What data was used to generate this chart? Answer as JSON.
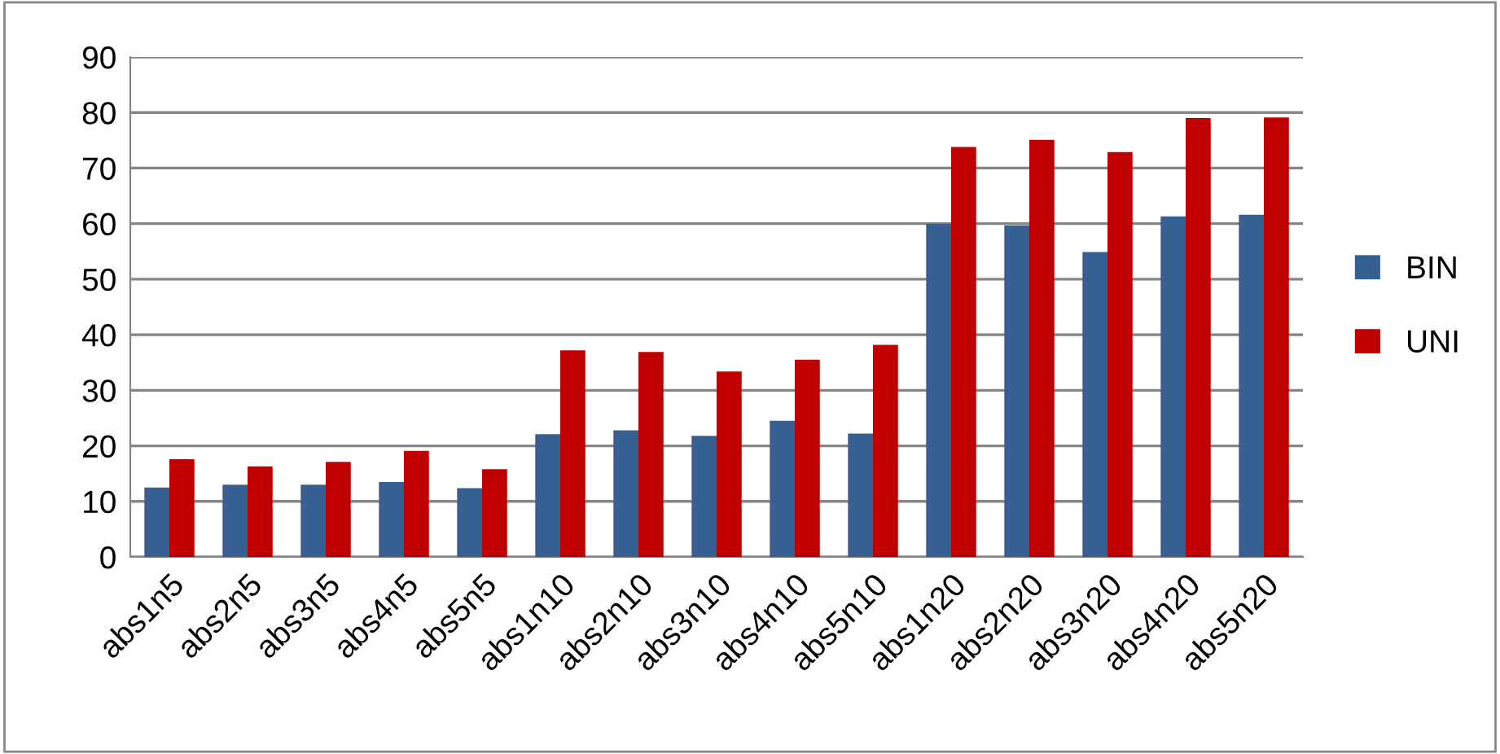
{
  "chart_data": {
    "type": "bar",
    "categories": [
      "abs1n5",
      "abs2n5",
      "abs3n5",
      "abs4n5",
      "abs5n5",
      "abs1n10",
      "abs2n10",
      "abs3n10",
      "abs4n10",
      "abs5n10",
      "abs1n20",
      "abs2n20",
      "abs3n20",
      "abs4n20",
      "abs5n20"
    ],
    "series": [
      {
        "name": "BIN",
        "color": "#376092",
        "values": [
          12.5,
          13.0,
          13.0,
          13.5,
          12.4,
          22.1,
          22.8,
          21.8,
          24.5,
          22.2,
          60.0,
          59.7,
          54.9,
          61.3,
          61.6
        ]
      },
      {
        "name": "UNI",
        "color": "#c00000",
        "values": [
          17.6,
          16.3,
          17.1,
          19.1,
          15.8,
          37.2,
          36.9,
          33.4,
          35.5,
          38.2,
          73.8,
          75.1,
          72.9,
          79.0,
          79.1
        ]
      }
    ],
    "ylim": [
      0,
      90
    ],
    "yticks": [
      0,
      10,
      20,
      30,
      40,
      50,
      60,
      70,
      80,
      90
    ],
    "grid": "y",
    "legend": "right"
  }
}
